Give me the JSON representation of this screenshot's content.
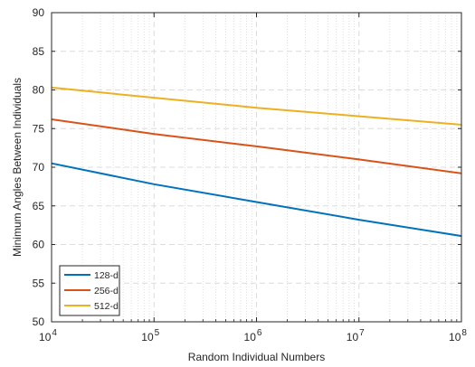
{
  "chart_data": {
    "type": "line",
    "xlabel": "Random Individual Numbers",
    "ylabel": "Minimum Angles Between Individuals",
    "xscale": "log",
    "xlim": [
      10000,
      100000000
    ],
    "ylim": [
      50,
      90
    ],
    "x_ticks": [
      {
        "base": "10",
        "exp": "4"
      },
      {
        "base": "10",
        "exp": "5"
      },
      {
        "base": "10",
        "exp": "6"
      },
      {
        "base": "10",
        "exp": "7"
      },
      {
        "base": "10",
        "exp": "8"
      }
    ],
    "y_ticks": [
      "50",
      "55",
      "60",
      "65",
      "70",
      "75",
      "80",
      "85",
      "90"
    ],
    "grid": true,
    "legend_position": "bottom-left",
    "series": [
      {
        "name": "128-d",
        "color": "#0072BD",
        "x": [
          10000,
          100000,
          1000000,
          10000000,
          100000000
        ],
        "values": [
          70.5,
          67.8,
          65.5,
          63.2,
          61.1
        ]
      },
      {
        "name": "256-d",
        "color": "#D95319",
        "x": [
          10000,
          100000,
          1000000,
          10000000,
          100000000
        ],
        "values": [
          76.2,
          74.3,
          72.7,
          71.0,
          69.2
        ]
      },
      {
        "name": "512-d",
        "color": "#EDB120",
        "x": [
          10000,
          100000,
          1000000,
          10000000,
          100000000
        ],
        "values": [
          80.3,
          79.0,
          77.7,
          76.6,
          75.5
        ]
      }
    ]
  }
}
